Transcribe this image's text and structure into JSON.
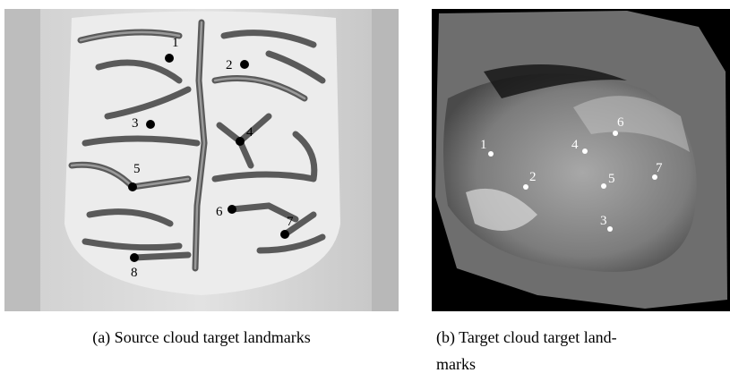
{
  "panels": [
    {
      "caption": [
        "(a) Source cloud target landmarks"
      ],
      "landmarks": [
        "1",
        "2",
        "3",
        "4",
        "5",
        "6",
        "7",
        "8"
      ]
    },
    {
      "caption": [
        "(b) Target cloud target land-",
        "marks"
      ],
      "landmarks": [
        "1",
        "2",
        "3",
        "4",
        "5",
        "6",
        "7"
      ]
    }
  ]
}
